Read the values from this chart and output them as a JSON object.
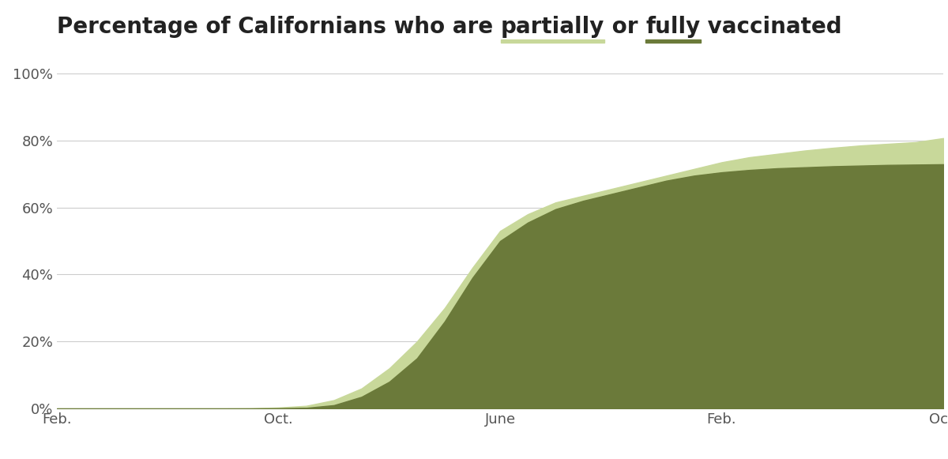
{
  "color_partial": "#c8d89a",
  "color_full": "#6b7a3a",
  "background_color": "#ffffff",
  "ylim": [
    0,
    100
  ],
  "yticks": [
    0,
    20,
    40,
    60,
    80,
    100
  ],
  "ytick_labels": [
    "0%",
    "20%",
    "40%",
    "60%",
    "80%",
    "100%"
  ],
  "x_tick_labels": [
    "Feb.",
    "Oct.",
    "June",
    "Feb.",
    "Oct."
  ],
  "x_tick_positions": [
    0,
    8,
    16,
    24,
    32
  ],
  "title_fontsize": 20,
  "axis_fontsize": 13,
  "title_color": "#222222",
  "partial_data": [
    0.0,
    0.0,
    0.0,
    0.0,
    0.0,
    0.0,
    0.0,
    0.05,
    0.3,
    0.8,
    2.5,
    6.0,
    12.0,
    20.0,
    30.0,
    42.0,
    53.0,
    58.0,
    61.5,
    63.5,
    65.5,
    67.5,
    69.5,
    71.5,
    73.5,
    75.0,
    76.0,
    77.0,
    77.8,
    78.5,
    79.0,
    79.5,
    80.7
  ],
  "full_data": [
    0.0,
    0.0,
    0.0,
    0.0,
    0.0,
    0.0,
    0.0,
    0.0,
    0.05,
    0.2,
    1.0,
    3.5,
    8.0,
    15.0,
    26.0,
    39.0,
    50.0,
    55.5,
    59.5,
    62.0,
    64.0,
    66.0,
    68.0,
    69.5,
    70.5,
    71.2,
    71.7,
    72.0,
    72.3,
    72.5,
    72.7,
    72.8,
    72.9
  ],
  "n_points": 33
}
